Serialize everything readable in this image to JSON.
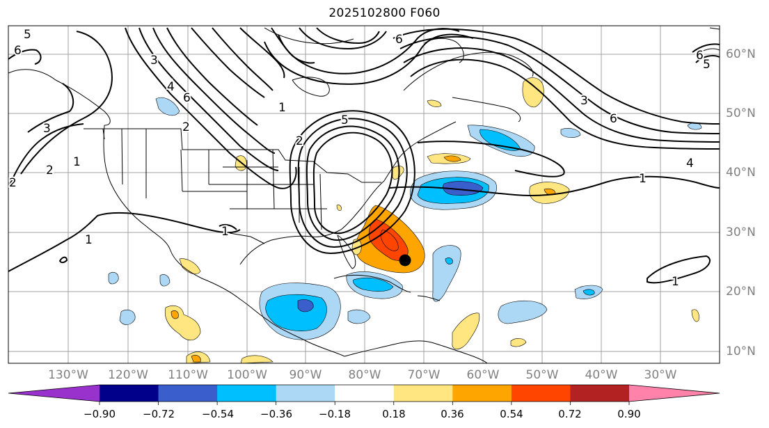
{
  "title": "2025102800 F060",
  "map": {
    "lon_labels": [
      "130°W",
      "120°W",
      "110°W",
      "100°W",
      "90°W",
      "80°W",
      "70°W",
      "60°W",
      "50°W",
      "40°W",
      "30°W"
    ],
    "lat_labels": [
      "60°N",
      "50°N",
      "40°N",
      "30°N",
      "20°N",
      "10°N"
    ],
    "contour_labels": [
      "1",
      "2",
      "3",
      "4",
      "5",
      "6"
    ],
    "storm_marker": "storm-center-dot"
  },
  "colorbar": {
    "tick_labels": [
      "−0.90",
      "−0.72",
      "−0.54",
      "−0.36",
      "−0.18",
      "0.18",
      "0.36",
      "0.54",
      "0.72",
      "0.90"
    ],
    "colors": [
      "#9932cc",
      "#00008b",
      "#3a5fcd",
      "#00bfff",
      "#add8f5",
      "#ffffff",
      "#ffe680",
      "#ffa500",
      "#ff4500",
      "#b22222",
      "#ff82ab"
    ]
  }
}
